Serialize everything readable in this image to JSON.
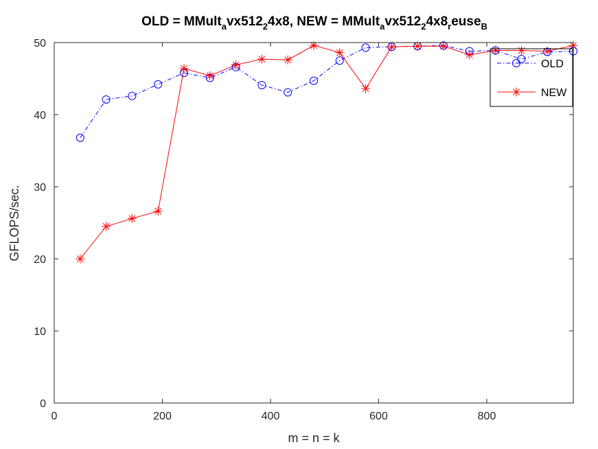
{
  "chart_data": {
    "type": "line",
    "title": {
      "parts": [
        {
          "t": "OLD = MMult",
          "sub": false
        },
        {
          "t": "a",
          "sub": true
        },
        {
          "t": "vx512",
          "sub": false
        },
        {
          "t": "2",
          "sub": true
        },
        {
          "t": "4x8, NEW = MMult",
          "sub": false
        },
        {
          "t": "a",
          "sub": true
        },
        {
          "t": "vx512",
          "sub": false
        },
        {
          "t": "2",
          "sub": true
        },
        {
          "t": "4x8",
          "sub": false
        },
        {
          "t": "r",
          "sub": true
        },
        {
          "t": "euse",
          "sub": false
        },
        {
          "t": "B",
          "sub": true
        }
      ]
    },
    "xlabel": "m = n = k",
    "ylabel": "GFLOPS/sec.",
    "xlim": [
      0,
      960
    ],
    "ylim": [
      0,
      50
    ],
    "xticks": [
      0,
      200,
      400,
      600,
      800
    ],
    "yticks": [
      0,
      10,
      20,
      30,
      40,
      50
    ],
    "grid": false,
    "legend_position": "top-right",
    "x": [
      48,
      96,
      144,
      192,
      240,
      288,
      336,
      384,
      432,
      480,
      528,
      576,
      624,
      672,
      720,
      768,
      816,
      864,
      912,
      960
    ],
    "series": [
      {
        "name": "OLD",
        "color": "#0000ff",
        "line_style": "dash-dot",
        "marker": "circle",
        "values": [
          36.8,
          42.1,
          42.6,
          44.2,
          45.8,
          45.1,
          46.6,
          44.1,
          43.1,
          44.7,
          47.5,
          49.3,
          49.4,
          49.5,
          49.6,
          48.8,
          48.9,
          47.7,
          48.7,
          48.8
        ]
      },
      {
        "name": "NEW",
        "color": "#ff0000",
        "line_style": "solid",
        "marker": "asterisk",
        "values": [
          20.0,
          24.5,
          25.6,
          26.6,
          46.4,
          45.4,
          46.9,
          47.7,
          47.6,
          49.6,
          48.6,
          43.6,
          49.4,
          49.5,
          49.5,
          48.3,
          48.9,
          48.9,
          48.8,
          49.6
        ]
      }
    ]
  }
}
